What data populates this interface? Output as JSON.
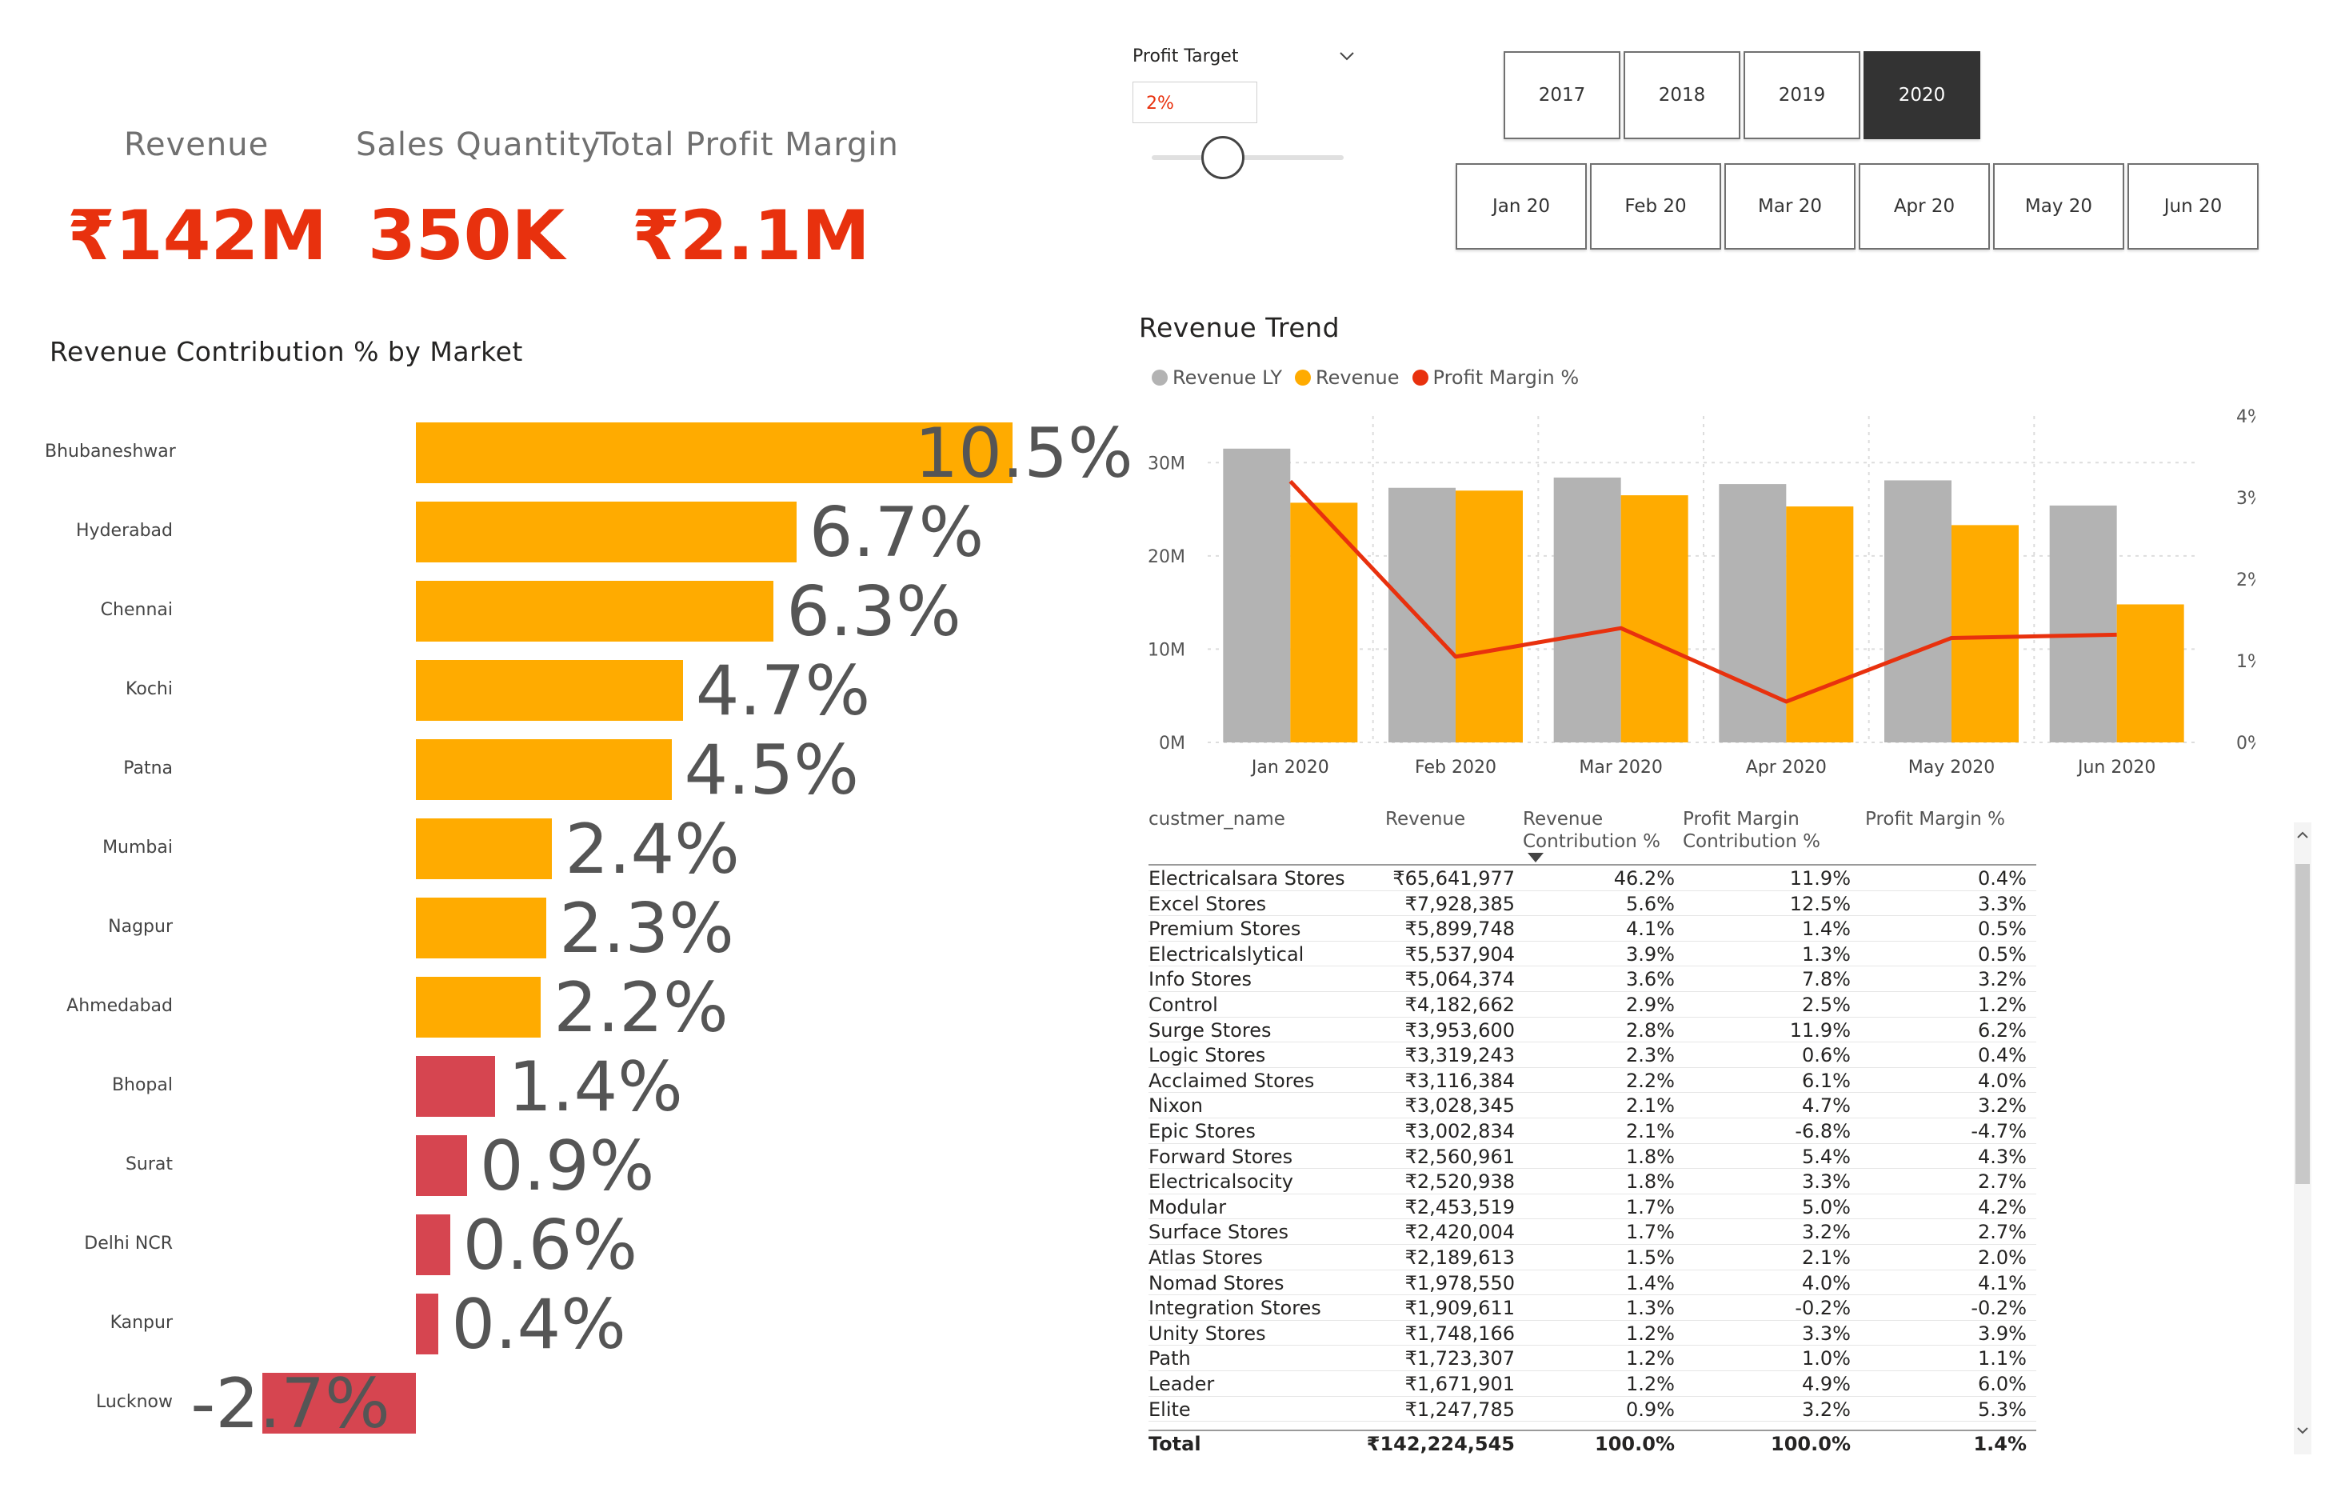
{
  "kpis": [
    {
      "label": "Revenue",
      "value": "₹142M"
    },
    {
      "label": "Sales Quantity",
      "value": "350K"
    },
    {
      "label": "Total Profit Margin",
      "value": "₹2.1M"
    }
  ],
  "profit_target": {
    "title": "Profit Target",
    "value": "2%",
    "slider_fraction": 0.3
  },
  "years": [
    "2017",
    "2018",
    "2019",
    "2020"
  ],
  "selected_year": "2020",
  "months": [
    "Jan 20",
    "Feb 20",
    "Mar 20",
    "Apr 20",
    "May 20",
    "Jun 20"
  ],
  "chart_data": [
    {
      "type": "bar",
      "orientation": "horizontal",
      "title": "Revenue Contribution % by Market",
      "categories": [
        "Bhubaneshwar",
        "Hyderabad",
        "Chennai",
        "Kochi",
        "Patna",
        "Mumbai",
        "Nagpur",
        "Ahmedabad",
        "Bhopal",
        "Surat",
        "Delhi NCR",
        "Kanpur",
        "Lucknow"
      ],
      "values": [
        10.5,
        6.7,
        6.3,
        4.7,
        4.5,
        2.4,
        2.3,
        2.2,
        1.4,
        0.9,
        0.6,
        0.4,
        -2.7
      ],
      "labels": [
        "10.5%",
        "6.7%",
        "6.3%",
        "4.7%",
        "4.5%",
        "2.4%",
        "2.3%",
        "2.2%",
        "1.4%",
        "0.9%",
        "0.6%",
        "0.4%",
        "-2.7%"
      ],
      "colors": {
        "above_target": "#ffab00",
        "below_target": "#d64550"
      },
      "target": 2
    },
    {
      "type": "bar+line",
      "title": "Revenue Trend",
      "categories": [
        "Jan 2020",
        "Feb 2020",
        "Mar 2020",
        "Apr 2020",
        "May 2020",
        "Jun 2020"
      ],
      "series": [
        {
          "name": "Revenue LY",
          "type": "bar",
          "color": "#b3b3b3",
          "values": [
            31.5,
            27.3,
            28.4,
            27.7,
            28.1,
            25.4
          ]
        },
        {
          "name": "Revenue",
          "type": "bar",
          "color": "#ffab00",
          "values": [
            25.7,
            27.0,
            26.5,
            25.3,
            23.3,
            14.8
          ]
        },
        {
          "name": "Profit Margin %",
          "type": "line",
          "color": "#e8310e",
          "axis": "right",
          "values": [
            3.2,
            1.05,
            1.4,
            0.5,
            1.28,
            1.32
          ]
        }
      ],
      "y_left": {
        "ticks": [
          "0M",
          "10M",
          "20M",
          "30M"
        ],
        "range": [
          0,
          35
        ]
      },
      "y_right": {
        "ticks": [
          "0%",
          "1%",
          "2%",
          "3%",
          "4%"
        ],
        "range": [
          0,
          4
        ]
      },
      "grid": true,
      "legend": "top-left"
    }
  ],
  "table": {
    "headers": {
      "name": "custmer_name",
      "revenue": "Revenue",
      "contrib_1": "Revenue",
      "contrib_2": "Contribution %",
      "pmc_1": "Profit Margin",
      "pmc_2": "Contribution %",
      "pm": "Profit Margin %"
    },
    "rows": [
      [
        "Electricalsara Stores",
        "₹65,641,977",
        "46.2%",
        "11.9%",
        "0.4%"
      ],
      [
        "Excel Stores",
        "₹7,928,385",
        "5.6%",
        "12.5%",
        "3.3%"
      ],
      [
        "Premium Stores",
        "₹5,899,748",
        "4.1%",
        "1.4%",
        "0.5%"
      ],
      [
        "Electricalslytical",
        "₹5,537,904",
        "3.9%",
        "1.3%",
        "0.5%"
      ],
      [
        "Info Stores",
        "₹5,064,374",
        "3.6%",
        "7.8%",
        "3.2%"
      ],
      [
        "Control",
        "₹4,182,662",
        "2.9%",
        "2.5%",
        "1.2%"
      ],
      [
        "Surge Stores",
        "₹3,953,600",
        "2.8%",
        "11.9%",
        "6.2%"
      ],
      [
        "Logic Stores",
        "₹3,319,243",
        "2.3%",
        "0.6%",
        "0.4%"
      ],
      [
        "Acclaimed Stores",
        "₹3,116,384",
        "2.2%",
        "6.1%",
        "4.0%"
      ],
      [
        "Nixon",
        "₹3,028,345",
        "2.1%",
        "4.7%",
        "3.2%"
      ],
      [
        "Epic Stores",
        "₹3,002,834",
        "2.1%",
        "-6.8%",
        "-4.7%"
      ],
      [
        "Forward Stores",
        "₹2,560,961",
        "1.8%",
        "5.4%",
        "4.3%"
      ],
      [
        "Electricalsocity",
        "₹2,520,938",
        "1.8%",
        "3.3%",
        "2.7%"
      ],
      [
        "Modular",
        "₹2,453,519",
        "1.7%",
        "5.0%",
        "4.2%"
      ],
      [
        "Surface Stores",
        "₹2,420,004",
        "1.7%",
        "3.2%",
        "2.7%"
      ],
      [
        "Atlas Stores",
        "₹2,189,613",
        "1.5%",
        "2.1%",
        "2.0%"
      ],
      [
        "Nomad Stores",
        "₹1,978,550",
        "1.4%",
        "4.0%",
        "4.1%"
      ],
      [
        "Integration Stores",
        "₹1,909,611",
        "1.3%",
        "-0.2%",
        "-0.2%"
      ],
      [
        "Unity Stores",
        "₹1,748,166",
        "1.2%",
        "3.3%",
        "3.9%"
      ],
      [
        "Path",
        "₹1,723,307",
        "1.2%",
        "1.0%",
        "1.1%"
      ],
      [
        "Leader",
        "₹1,671,901",
        "1.2%",
        "4.9%",
        "6.0%"
      ],
      [
        "Elite",
        "₹1,247,785",
        "0.9%",
        "3.2%",
        "5.3%"
      ]
    ],
    "total": [
      "Total",
      "₹142,224,545",
      "100.0%",
      "100.0%",
      "1.4%"
    ]
  }
}
